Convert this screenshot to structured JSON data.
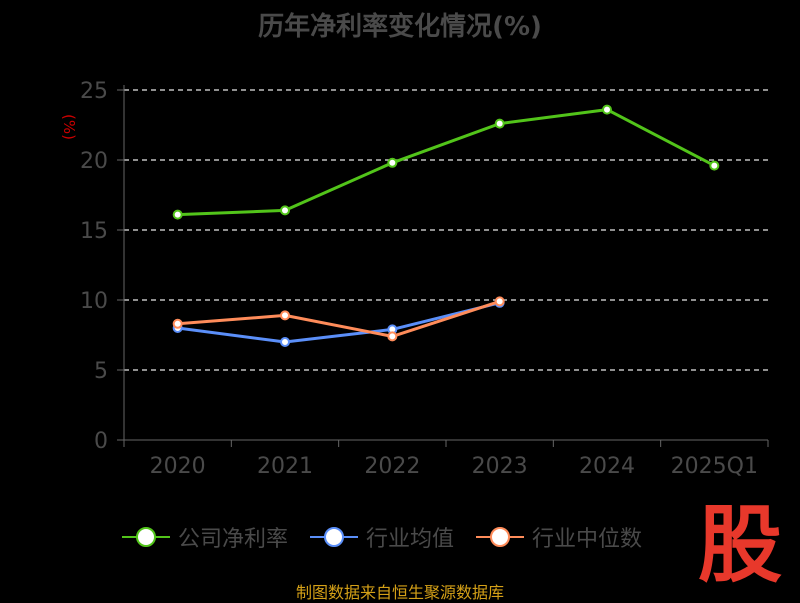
{
  "chart_data": {
    "type": "line",
    "title": "历年净利率变化情况(%)",
    "ylabel": "(%)",
    "categories": [
      "2020",
      "2021",
      "2022",
      "2023",
      "2024",
      "2025Q1"
    ],
    "ylim": [
      0,
      25
    ],
    "yticks": [
      0,
      5,
      10,
      15,
      20,
      25
    ],
    "grid": true,
    "legend_position": "bottom",
    "series": [
      {
        "name": "公司净利率",
        "color": "#52c41a",
        "values": [
          16.1,
          16.4,
          19.8,
          22.6,
          23.6,
          19.6
        ]
      },
      {
        "name": "行业均值",
        "color": "#5b8ff9",
        "values": [
          8.0,
          7.0,
          7.9,
          9.8,
          null,
          null
        ]
      },
      {
        "name": "行业中位数",
        "color": "#ff8c5a",
        "values": [
          8.3,
          8.9,
          7.4,
          9.9,
          null,
          null
        ]
      }
    ]
  },
  "brand_mark": "股",
  "footer": "制图数据来自恒生聚源数据库"
}
